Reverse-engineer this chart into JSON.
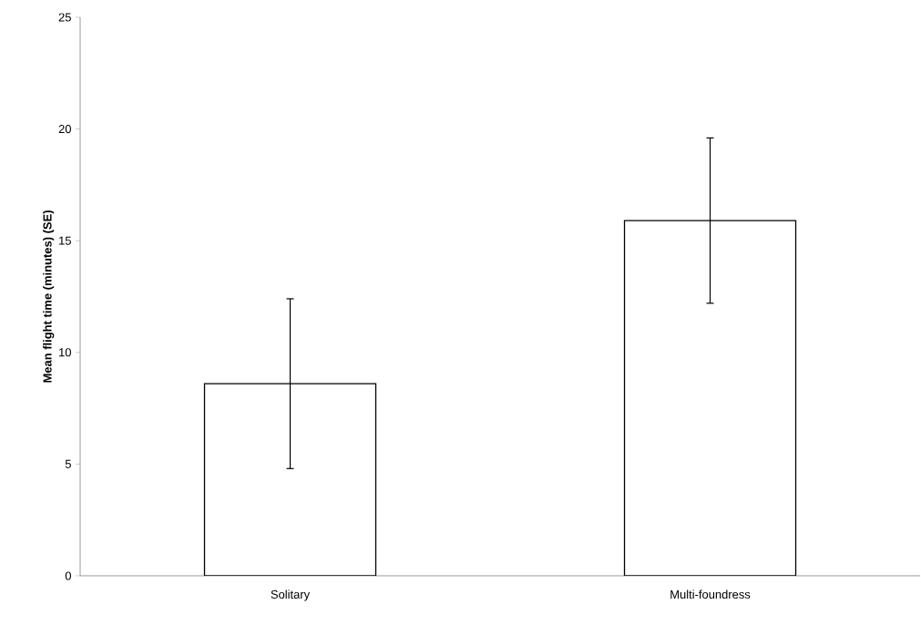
{
  "chart_data": {
    "type": "bar",
    "ylabel": "Mean flight time (minutes) (SE)",
    "categories": [
      "Solitary",
      "Multi-foundress"
    ],
    "values": [
      8.6,
      15.9
    ],
    "errors": [
      3.8,
      3.7
    ],
    "color": "#ffffff",
    "ylim": [
      0,
      25
    ],
    "yticks": [
      0,
      5,
      10,
      15,
      20,
      25
    ],
    "grid": false
  }
}
